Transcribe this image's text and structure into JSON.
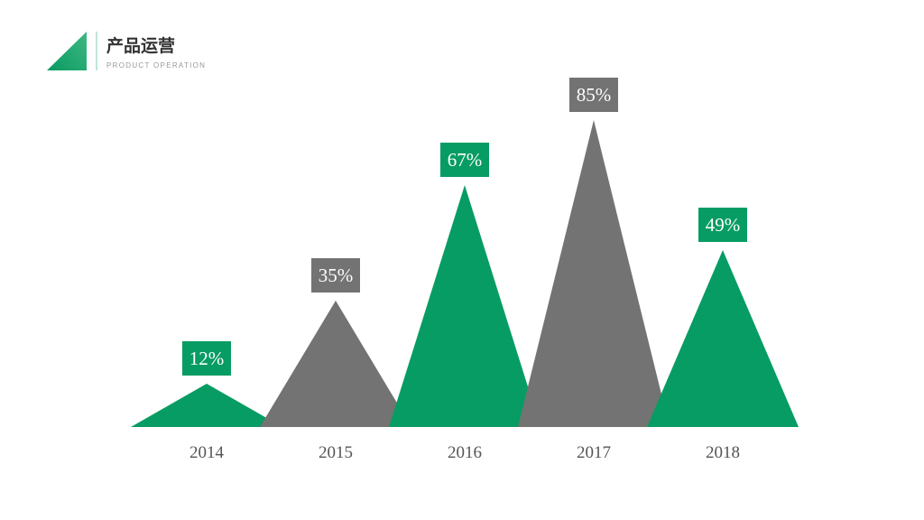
{
  "header": {
    "title": "产品运营",
    "subtitle": "PRODUCT OPERATION"
  },
  "chart_data": {
    "type": "triangle",
    "categories": [
      "2014",
      "2015",
      "2016",
      "2017",
      "2018"
    ],
    "values": [
      12,
      35,
      67,
      85,
      49
    ],
    "value_labels": [
      "12%",
      "35%",
      "67%",
      "85%",
      "49%"
    ],
    "colors": [
      "#079c63",
      "#737373",
      "#079c63",
      "#737373",
      "#079c63"
    ]
  }
}
